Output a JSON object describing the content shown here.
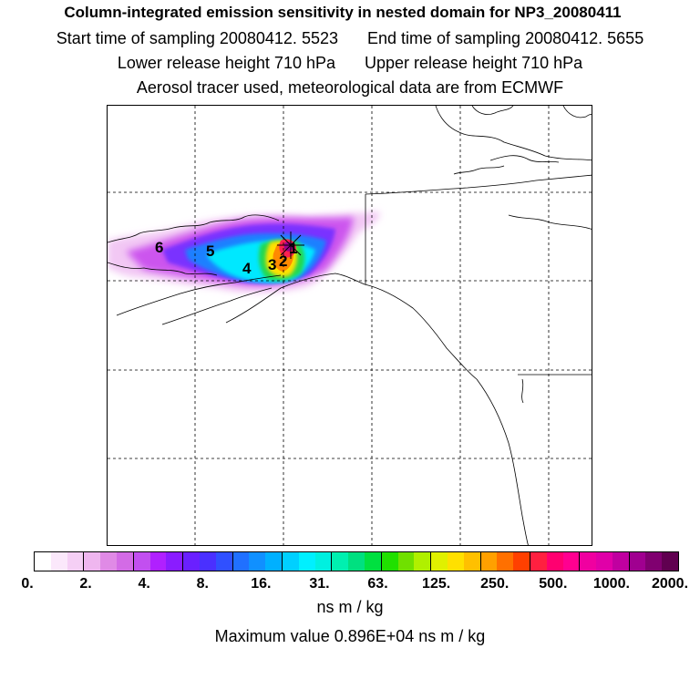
{
  "header": {
    "title": "Column-integrated emission sensitivity in nested domain for NP3_20080411",
    "start_sampling": "Start time of sampling 20080412.  5523",
    "end_sampling": "End time of sampling 20080412.  5655",
    "lower_release": "Lower release height  710 hPa",
    "upper_release": "Upper release height  710 hPa",
    "note": "Aerosol tracer used, meteorological data are from ECMWF"
  },
  "map": {
    "labels": [
      {
        "text": "1"
      },
      {
        "text": "2"
      },
      {
        "text": "3"
      },
      {
        "text": "4"
      },
      {
        "text": "5"
      },
      {
        "text": "6"
      }
    ]
  },
  "colorbar": {
    "colors": [
      "#ffffff",
      "#fbe8fb",
      "#f5cff5",
      "#efb6ef",
      "#e08ae6",
      "#d36be6",
      "#c24ff0",
      "#b020ff",
      "#8a1cff",
      "#6a20ff",
      "#4a30ff",
      "#3050ff",
      "#2070ff",
      "#1090ff",
      "#00b0ff",
      "#00d0ff",
      "#00f0ff",
      "#00f0e0",
      "#00f0b0",
      "#00e080",
      "#00e040",
      "#20e000",
      "#70e000",
      "#b0f000",
      "#e0f000",
      "#ffe000",
      "#ffc000",
      "#ffa000",
      "#ff7000",
      "#ff4000",
      "#ff2040",
      "#ff0070",
      "#ff0090",
      "#f000a0",
      "#e000a8",
      "#c000a0",
      "#a00090",
      "#800070",
      "#600050"
    ],
    "tick_labels": [
      "0.",
      "2.",
      "4.",
      "8.",
      "16.",
      "31.",
      "63.",
      "125.",
      "250.",
      "500.",
      "1000.",
      "2000."
    ],
    "units": "ns m / kg"
  },
  "max_value": "Maximum value  0.896E+04 ns m / kg"
}
